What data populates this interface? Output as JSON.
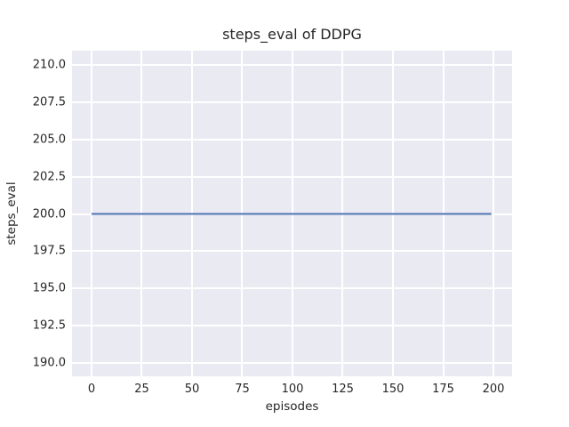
{
  "chart_data": {
    "type": "line",
    "title": "steps_eval of DDPG",
    "xlabel": "episodes",
    "ylabel": "steps_eval",
    "style": "seaborn-darkgrid",
    "grid": true,
    "legend": false,
    "xlim": [
      -9.73,
      209.29
    ],
    "ylim": [
      189.1,
      210.96
    ],
    "xticks": [
      0,
      25,
      50,
      75,
      100,
      125,
      150,
      175,
      200
    ],
    "xtick_labels": [
      "0",
      "25",
      "50",
      "75",
      "100",
      "125",
      "150",
      "175",
      "200"
    ],
    "yticks": [
      190.0,
      192.5,
      195.0,
      197.5,
      200.0,
      202.5,
      205.0,
      207.5,
      210.0
    ],
    "ytick_labels": [
      "190.0",
      "192.5",
      "195.0",
      "197.5",
      "200.0",
      "202.5",
      "205.0",
      "207.5",
      "210.0"
    ],
    "series": [
      {
        "name": "steps_eval",
        "color": "#4C72B0",
        "line_width": 2,
        "points": [
          [
            0,
            200.0
          ],
          [
            199,
            200.0
          ]
        ]
      }
    ],
    "colors": {
      "figure_background": "#FFFFFF",
      "axes_background": "#EAEAF2",
      "gridline": "#FFFFFF",
      "text": "#262626",
      "line": "#4C72B0"
    }
  }
}
